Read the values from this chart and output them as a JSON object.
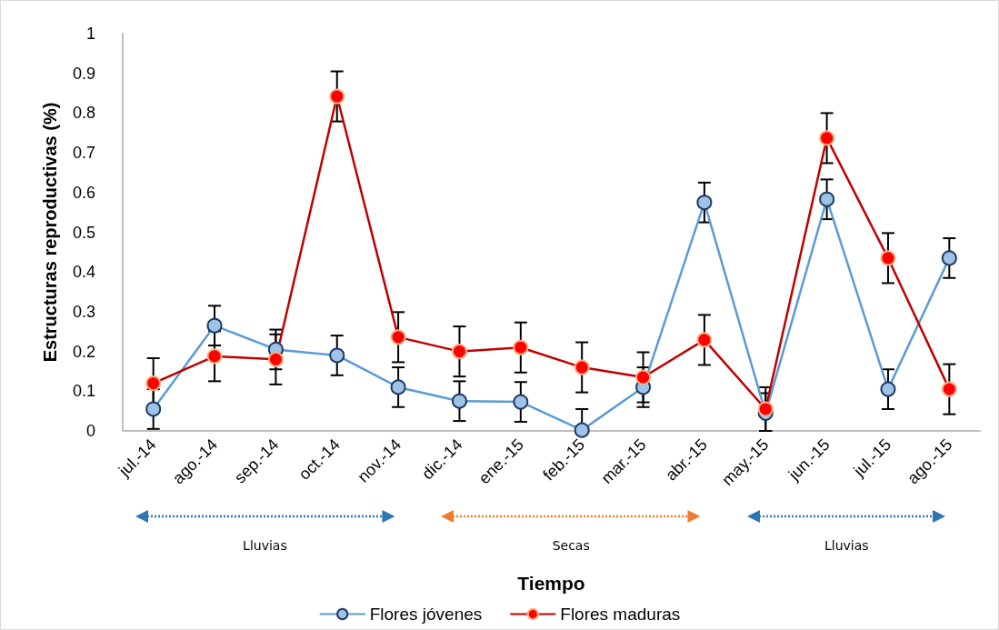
{
  "chart_data": {
    "type": "line",
    "xlabel": "Tiempo",
    "ylabel": "Estructuras reproductivas (%)",
    "categories": [
      "jul.-14",
      "ago.-14",
      "sep.-14",
      "oct.-14",
      "nov.-14",
      "dic.-14",
      "ene.-15",
      "feb.-15",
      "mar.-15",
      "abr.-15",
      "may.-15",
      "jun.-15",
      "jul.-15",
      "ago.-15"
    ],
    "series": [
      {
        "name": "Flores jóvenes",
        "color": "#5b9bd5",
        "values": [
          0.055,
          0.265,
          0.205,
          0.19,
          0.11,
          0.075,
          0.073,
          0.002,
          0.11,
          0.575,
          0.045,
          0.583,
          0.105,
          0.435
        ],
        "errors": [
          0.05,
          0.05,
          0.05,
          0.05,
          0.05,
          0.05,
          0.05,
          [
            0,
            0.055
          ],
          0.05,
          0.05,
          [
            0,
            0.095
          ],
          0.05,
          0.05,
          0.05
        ]
      },
      {
        "name": "Flores maduras",
        "color": "#c00000",
        "values": [
          0.12,
          0.188,
          0.18,
          0.842,
          0.236,
          0.2,
          0.21,
          0.16,
          0.135,
          0.229,
          0.055,
          0.737,
          0.435,
          0.105
        ],
        "errors": [
          0.063,
          0.063,
          0.063,
          0.063,
          0.063,
          0.063,
          0.063,
          0.063,
          0.063,
          0.063,
          0.055,
          0.063,
          0.063,
          0.063
        ]
      }
    ],
    "ylim": [
      0,
      1
    ],
    "yticks": [
      0,
      0.1,
      0.2,
      0.3,
      0.4,
      0.5,
      0.6,
      0.7,
      0.8,
      0.9,
      1
    ],
    "annotations": [
      "Lluvias",
      "Secas",
      "Lluvias"
    ],
    "grid": false,
    "legend": "bottom",
    "marker": "circle",
    "line_style": "solid"
  }
}
